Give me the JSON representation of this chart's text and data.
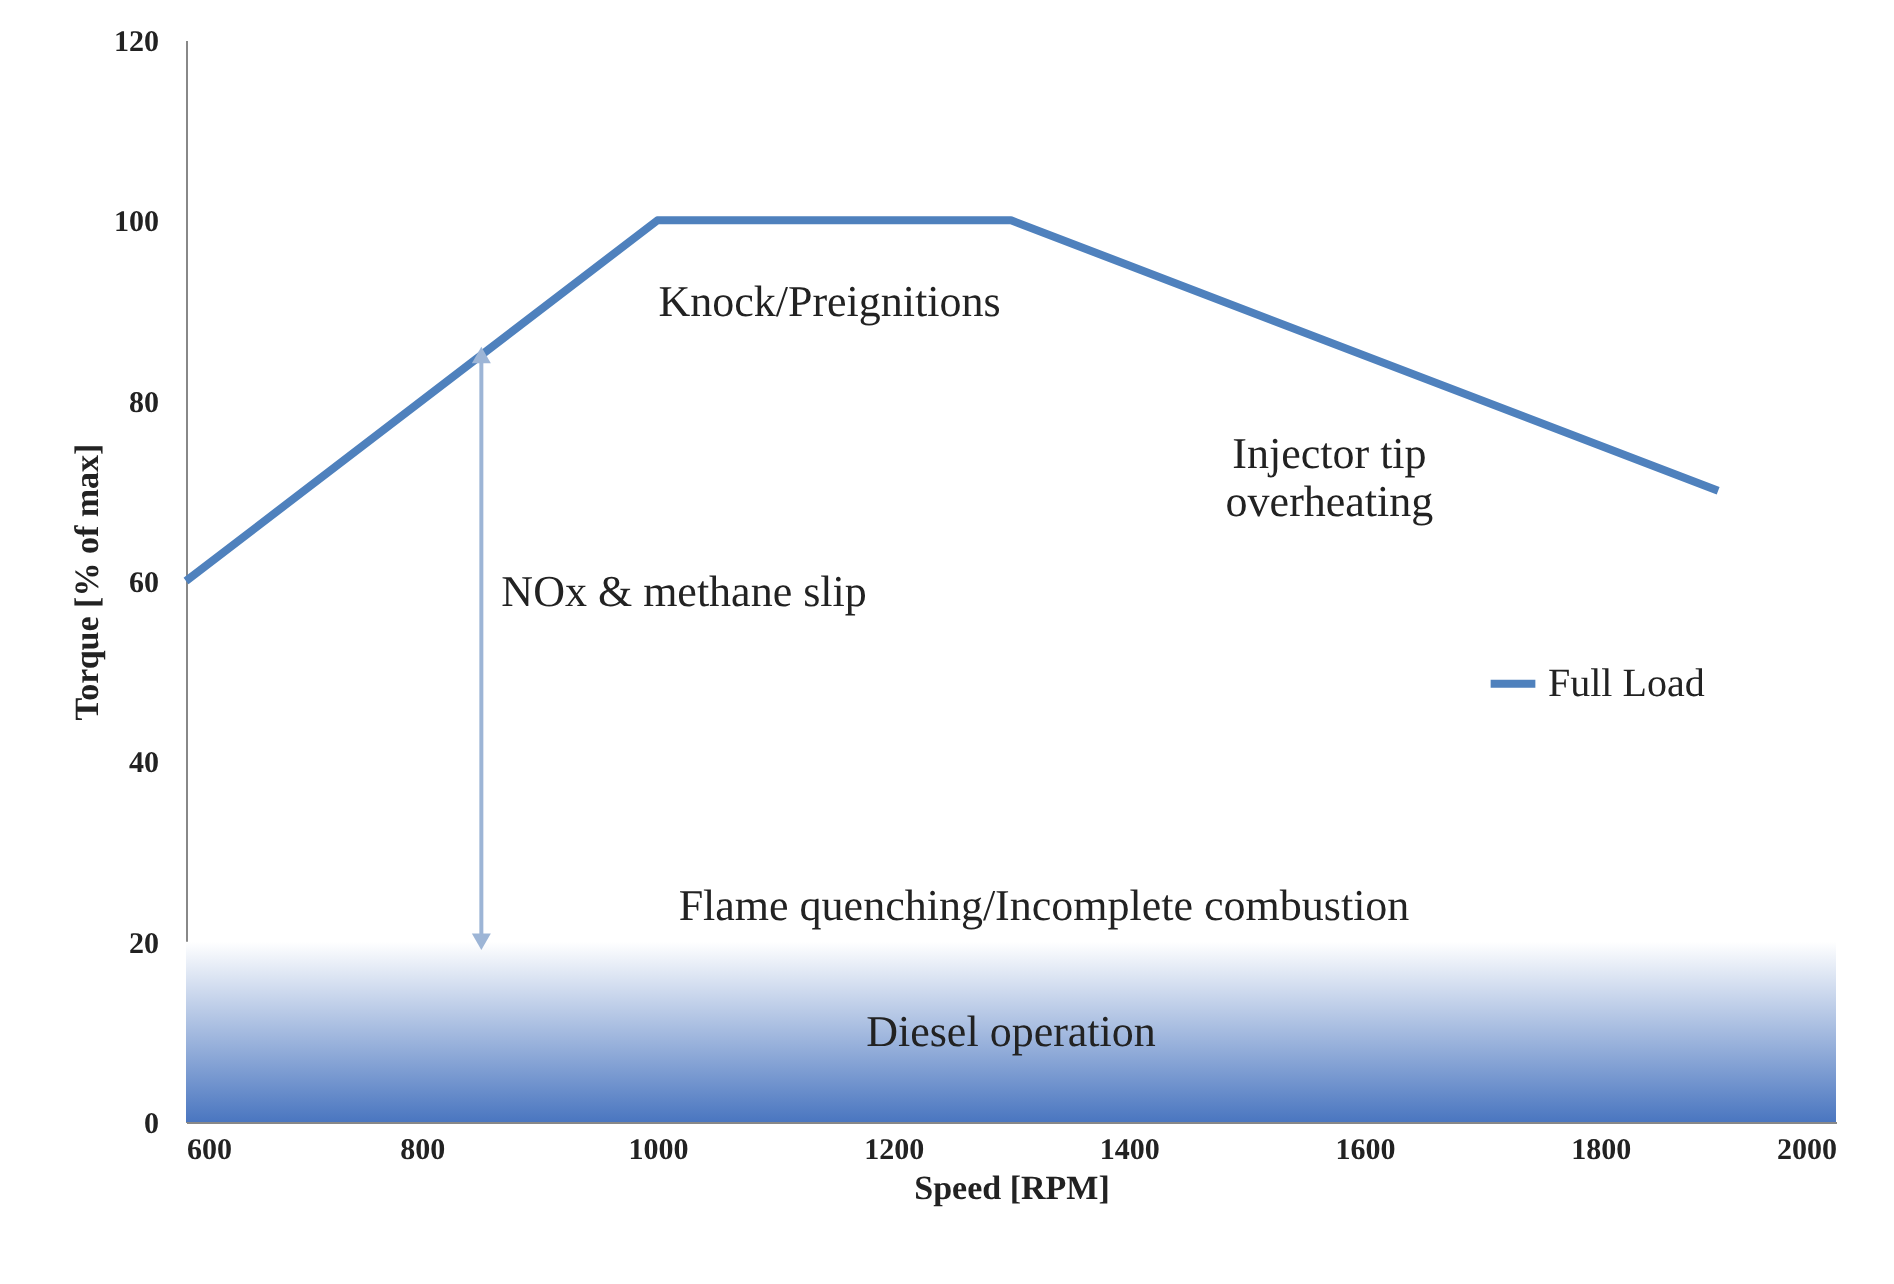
{
  "chart_data": {
    "type": "line",
    "xlabel": "Speed [RPM]",
    "ylabel": "Torque [% of max]",
    "x": [
      600,
      1000,
      1300,
      1900
    ],
    "series": [
      {
        "name": "Full Load",
        "color": "#4f81bd",
        "values": [
          60,
          100,
          100,
          70
        ]
      }
    ],
    "xlim": [
      600,
      2000
    ],
    "xticks": [
      600,
      800,
      1000,
      1200,
      1400,
      1600,
      1800,
      2000
    ],
    "ylim": [
      0,
      120
    ],
    "yticks": [
      0,
      20,
      40,
      60,
      80,
      100,
      120
    ],
    "grid": false,
    "legend": "right",
    "marker": "none",
    "line_style": "solid",
    "bands": [
      {
        "axis": "y",
        "from": 0,
        "to": 20,
        "label": "Diesel operation",
        "color": "#4a76c0"
      }
    ],
    "annotations": [
      "Knock/Preignitions",
      "Injector tip\noverheating",
      "NOx & methane slip",
      "Flame quenching/Incomplete combustion"
    ]
  }
}
